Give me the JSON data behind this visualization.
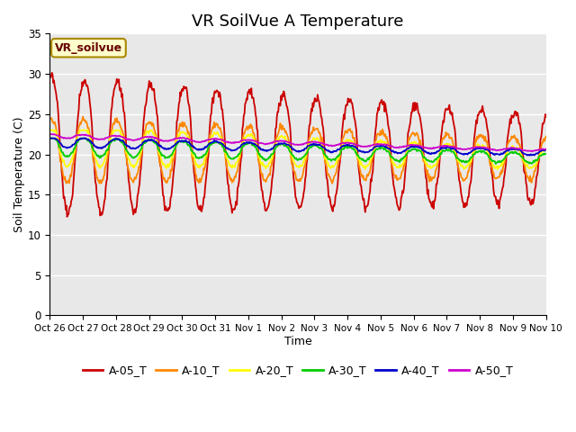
{
  "title": "VR SoilVue A Temperature",
  "xlabel": "Time",
  "ylabel": "Soil Temperature (C)",
  "ylim": [
    0,
    35
  ],
  "yticks": [
    0,
    5,
    10,
    15,
    20,
    25,
    30,
    35
  ],
  "plot_bg_color": "#e8e8e8",
  "series_names": [
    "A-05_T",
    "A-10_T",
    "A-20_T",
    "A-30_T",
    "A-40_T",
    "A-50_T"
  ],
  "series_colors": [
    "#cc0000",
    "#ff8800",
    "#ffff00",
    "#00cc00",
    "#0000cc",
    "#cc00cc"
  ],
  "x_labels": [
    "Oct 26",
    "Oct 27",
    "Oct 28",
    "Oct 29",
    "Oct 30",
    "Oct 31",
    "Nov 1",
    "Nov 2",
    "Nov 3",
    "Nov 4",
    "Nov 5",
    "Nov 6",
    "Nov 7",
    "Nov 8",
    "Nov 9",
    "Nov 10"
  ],
  "annotation_box": "VR_soilvue",
  "legend_fontsize": 9,
  "title_fontsize": 13
}
